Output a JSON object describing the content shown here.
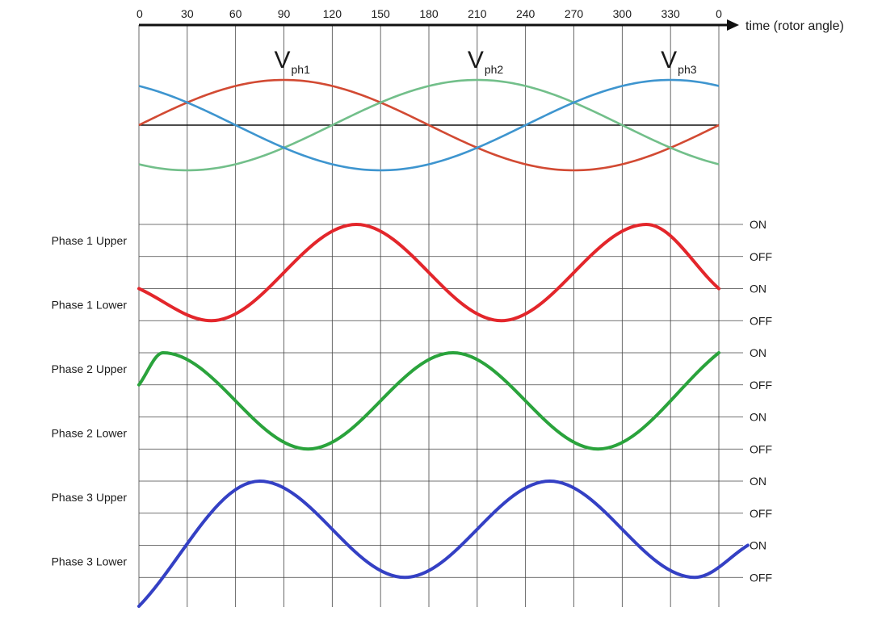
{
  "chart_data": {
    "type": "line",
    "x_axis": {
      "title": "time (rotor angle)",
      "ticks": [
        "0",
        "30",
        "60",
        "90",
        "120",
        "150",
        "180",
        "210",
        "240",
        "270",
        "300",
        "330",
        "0"
      ],
      "range_deg": [
        0,
        360
      ]
    },
    "phase_voltages": [
      {
        "symbol": "V",
        "subscript": "ph1",
        "color": "#d24a33",
        "phase_deg": 0,
        "peak_at_deg": 90
      },
      {
        "symbol": "V",
        "subscript": "ph2",
        "color": "#72bf8a",
        "phase_deg": 120,
        "peak_at_deg": 210
      },
      {
        "symbol": "V",
        "subscript": "ph3",
        "color": "#3e95cf",
        "phase_deg": 240,
        "peak_at_deg": 330
      }
    ],
    "switch_rows": [
      {
        "label": "Phase 1 Upper"
      },
      {
        "label": "Phase 1 Lower"
      },
      {
        "label": "Phase 2 Upper"
      },
      {
        "label": "Phase 2 Lower"
      },
      {
        "label": "Phase 3 Upper"
      },
      {
        "label": "Phase 3 Lower"
      }
    ],
    "state_labels": [
      "ON",
      "OFF",
      "ON",
      "OFF",
      "ON",
      "OFF",
      "ON",
      "OFF",
      "ON",
      "OFF",
      "ON",
      "OFF"
    ],
    "switch_signals": [
      {
        "phase": 1,
        "color": "#e3262b",
        "peaks_deg": [
          135,
          315
        ],
        "troughs_deg": [
          45,
          225
        ],
        "top_row_state": 0,
        "bottom_row_state": 3,
        "start_deg": 0,
        "start_state": 2,
        "end_deg": 360,
        "end_state": 2
      },
      {
        "phase": 2,
        "color": "#2aa33c",
        "peaks_deg": [
          15,
          195
        ],
        "troughs_deg": [
          105,
          285
        ],
        "top_row_state": 4,
        "bottom_row_state": 7,
        "start_deg": 0,
        "start_state": 5,
        "end_deg": 360,
        "end_state": 4
      },
      {
        "phase": 3,
        "color": "#3440c4",
        "peaks_deg": [
          75,
          255
        ],
        "troughs_deg": [
          165,
          345
        ],
        "top_row_state": 8,
        "bottom_row_state": 11,
        "start_deg": 0,
        "start_state": 11.9,
        "end_deg": 378,
        "end_state": 10
      }
    ]
  }
}
